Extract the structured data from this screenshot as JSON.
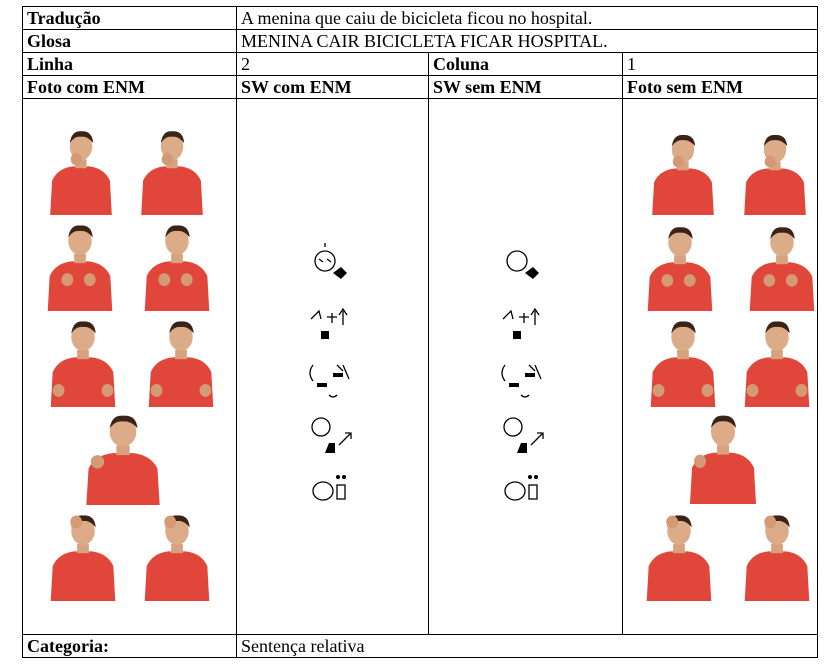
{
  "table": {
    "rows": [
      [
        "Tradução",
        "A menina que caiu de bicicleta ficou no hospital."
      ],
      [
        "Glosa",
        "MENINA CAIR BICICLETA FICAR HOSPITAL."
      ],
      [
        "Linha",
        "2",
        "Coluna",
        "1"
      ],
      [
        "Foto com ENM",
        "SW com ENM",
        "SW sem ENM",
        "Foto sem ENM"
      ]
    ],
    "footer": [
      "Categoria:",
      "Sentença relativa"
    ]
  }
}
